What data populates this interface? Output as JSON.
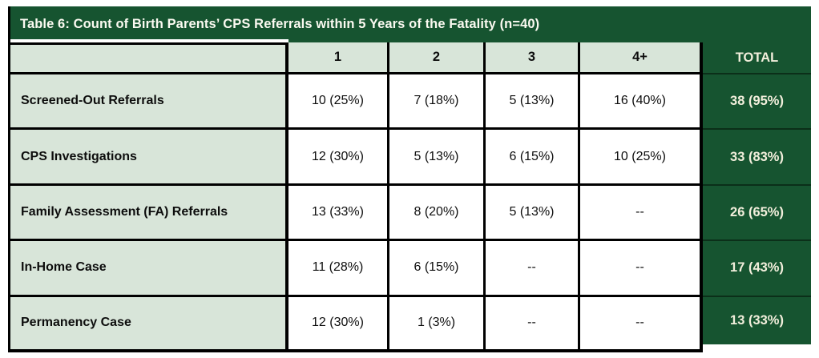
{
  "chart_data": {
    "type": "table",
    "title": "Table 6: Count of Birth Parents’ CPS Referrals within 5 Years of the Fatality (n=40)",
    "columns": [
      "",
      "1",
      "2",
      "3",
      "4+",
      "TOTAL"
    ],
    "rows": [
      {
        "label": "Screened-Out Referrals",
        "cells": [
          "10 (25%)",
          "7 (18%)",
          "5 (13%)",
          "16 (40%)",
          "38 (95%)"
        ]
      },
      {
        "label": "CPS Investigations",
        "cells": [
          "12 (30%)",
          "5 (13%)",
          "6 (15%)",
          "10 (25%)",
          "33 (83%)"
        ]
      },
      {
        "label": "Family Assessment (FA) Referrals",
        "cells": [
          "13 (33%)",
          "8 (20%)",
          "5 (13%)",
          "--",
          "26 (65%)"
        ]
      },
      {
        "label": "In-Home Case",
        "cells": [
          "11 (28%)",
          "6 (15%)",
          "--",
          "--",
          "17 (43%)"
        ]
      },
      {
        "label": "Permanency Case",
        "cells": [
          "12 (30%)",
          "1 (3%)",
          "--",
          "--",
          "13 (33%)"
        ]
      }
    ],
    "sample_size": "n=40",
    "layout": {
      "header_fill": "dark-green",
      "label_column_fill": "light-green",
      "total_column_fill": "dark-green",
      "grid": "black cell borders"
    }
  },
  "colors": {
    "dark_green": "#165430",
    "light_green": "#D8E5D9",
    "cream_text": "#F1EEDB",
    "border_black": "#000000"
  }
}
